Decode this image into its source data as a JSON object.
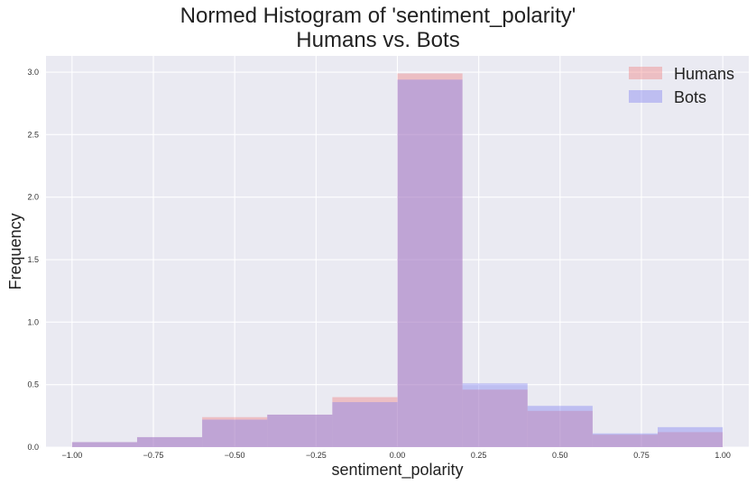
{
  "chart_data": {
    "type": "bar",
    "title_lines": [
      "Normed Histogram of 'sentiment_polarity'",
      "Humans vs. Bots"
    ],
    "xlabel": "sentiment_polarity",
    "ylabel": "Frequency",
    "xlim": [
      -1.08,
      1.08
    ],
    "ylim": [
      0,
      3.13
    ],
    "x_ticks": [
      -1.0,
      -0.75,
      -0.5,
      -0.25,
      0.0,
      0.25,
      0.5,
      0.75,
      1.0
    ],
    "x_tick_labels": [
      "−1.00",
      "−0.75",
      "−0.50",
      "−0.25",
      "0.00",
      "0.25",
      "0.50",
      "0.75",
      "1.00"
    ],
    "y_ticks": [
      0.0,
      0.5,
      1.0,
      1.5,
      2.0,
      2.5,
      3.0
    ],
    "y_tick_labels": [
      "0.0",
      "0.5",
      "1.0",
      "1.5",
      "2.0",
      "2.5",
      "3.0"
    ],
    "bin_edges": [
      -1.0,
      -0.8,
      -0.6,
      -0.4,
      -0.2,
      0.0,
      0.2,
      0.4,
      0.6,
      0.8,
      1.0
    ],
    "grid": true,
    "legend_position": "top-right",
    "series": [
      {
        "name": "Humans",
        "color": "#f07c7c",
        "opacity": 0.4,
        "values": [
          0.04,
          0.08,
          0.24,
          0.26,
          0.4,
          2.99,
          0.46,
          0.29,
          0.1,
          0.12
        ]
      },
      {
        "name": "Bots",
        "color": "#7c7cf0",
        "opacity": 0.4,
        "values": [
          0.04,
          0.08,
          0.22,
          0.26,
          0.36,
          2.94,
          0.51,
          0.33,
          0.11,
          0.16
        ]
      }
    ],
    "colors": {
      "plot_background": "#eaeaf2",
      "grid": "#ffffff"
    }
  }
}
